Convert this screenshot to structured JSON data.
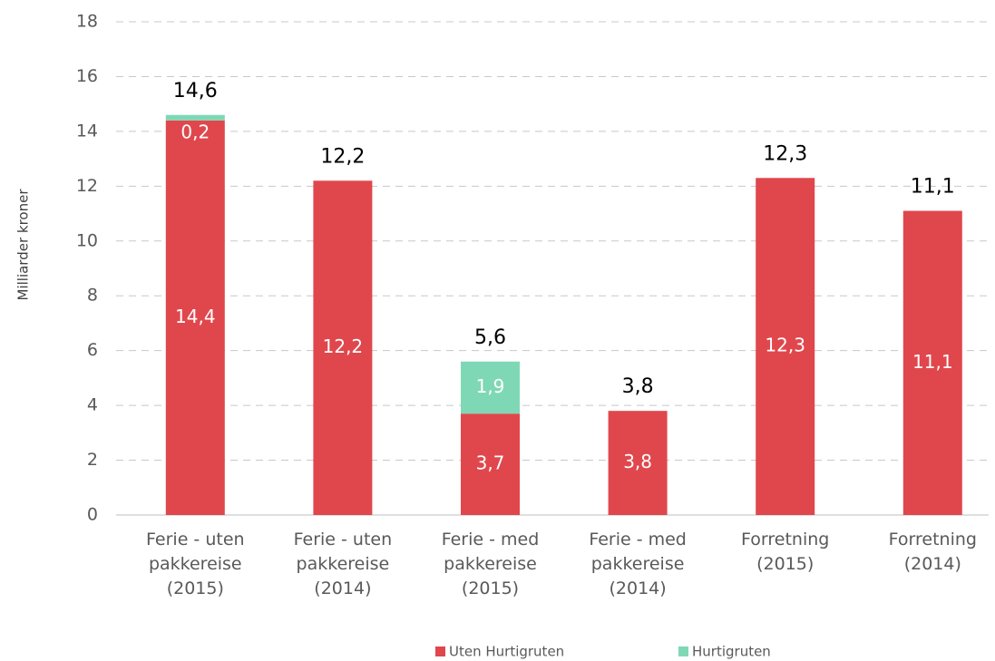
{
  "chart_data": {
    "type": "stacked_bar",
    "y_label": "Milliarder kroner",
    "categories": [
      "Ferie - uten\npakkereise\n(2015)",
      "Ferie - uten\npakkereise\n(2014)",
      "Ferie - med\npakkereise\n(2015)",
      "Ferie - med\npakkereise\n(2014)",
      "Forretning\n(2015)",
      "Forretning\n(2014)"
    ],
    "series": [
      {
        "name": "Uten Hurtigruten",
        "color": "#e0474c",
        "values": [
          14.4,
          12.2,
          3.7,
          3.8,
          12.3,
          11.1
        ],
        "value_labels": [
          "14,4",
          "12,2",
          "3,7",
          "3,8",
          "12,3",
          "11,1"
        ]
      },
      {
        "name": "Hurtigruten",
        "color": "#7fd8b5",
        "values": [
          0.2,
          null,
          1.9,
          null,
          null,
          null
        ],
        "value_labels": [
          "0,2",
          null,
          "1,9",
          null,
          null,
          null
        ]
      }
    ],
    "totals": [
      14.6,
      12.2,
      5.6,
      3.8,
      12.3,
      11.1
    ],
    "total_labels": [
      "14,6",
      "12,2",
      "5,6",
      "3,8",
      "12,3",
      "11,1"
    ],
    "ylim": [
      0,
      18
    ],
    "yticks": [
      0,
      2,
      4,
      6,
      8,
      10,
      12,
      14,
      16,
      18
    ],
    "grid": true
  }
}
